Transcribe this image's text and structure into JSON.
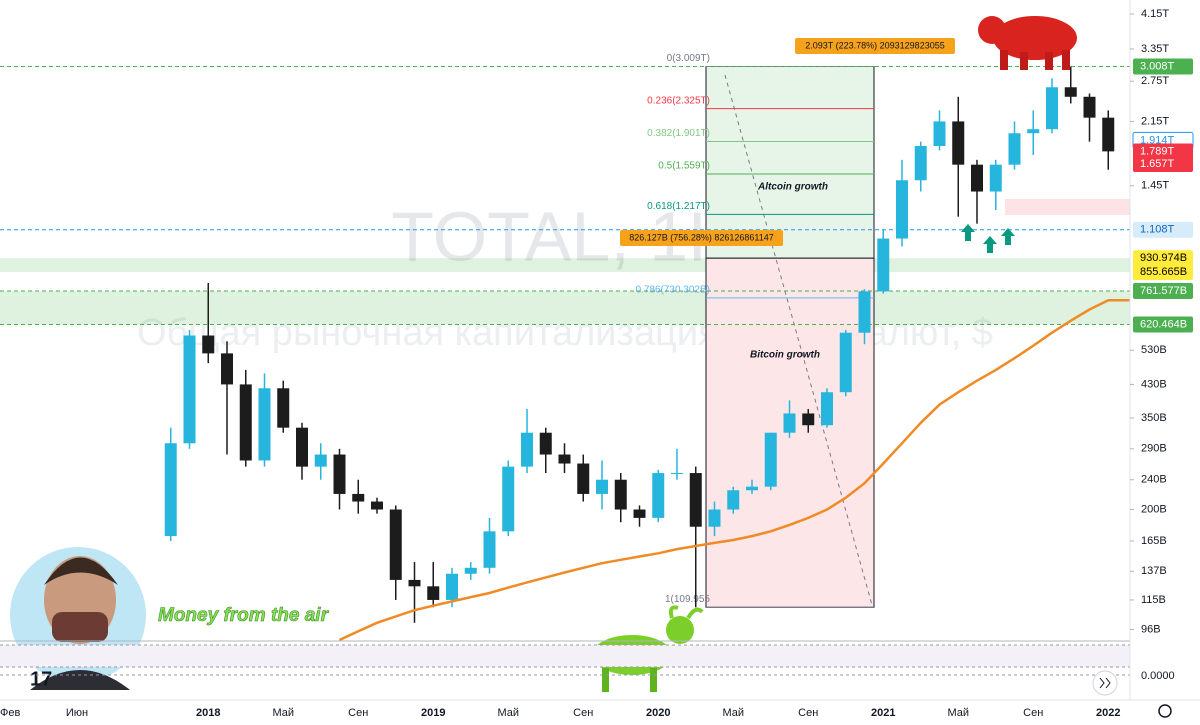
{
  "chart_data": {
    "type": "candlestick",
    "watermark_symbol": "TOTAL, 1Н",
    "watermark_title": "Общая рыночная капитализация криптовалют, $",
    "author": "Money from the air",
    "y_scale": "log",
    "ylim": [
      90,
      4520
    ],
    "yticks": [
      {
        "value": 4150,
        "label": "4.15T"
      },
      {
        "value": 3350,
        "label": "3.35T"
      },
      {
        "value": 2750,
        "label": "2.75T"
      },
      {
        "value": 2150,
        "label": "2.15T"
      },
      {
        "value": 1450,
        "label": "1.45T"
      },
      {
        "value": 530,
        "label": "530B"
      },
      {
        "value": 430,
        "label": "430B"
      },
      {
        "value": 350,
        "label": "350B"
      },
      {
        "value": 290,
        "label": "290B"
      },
      {
        "value": 240,
        "label": "240B"
      },
      {
        "value": 200,
        "label": "200B"
      },
      {
        "value": 165,
        "label": "165B"
      },
      {
        "value": 137,
        "label": "137B"
      },
      {
        "value": 115,
        "label": "115B"
      },
      {
        "value": 96,
        "label": "96B"
      }
    ],
    "x_labels": [
      "Фев",
      "Июн",
      "2018",
      "Май",
      "Сен",
      "2019",
      "Май",
      "Сен",
      "2020",
      "Май",
      "Сен",
      "2021",
      "Май",
      "Сен",
      "2022"
    ],
    "up_color": "#26b5dc",
    "down_color": "#1c1c1c",
    "open": [
      170,
      300,
      580,
      520,
      430,
      270,
      420,
      330,
      260,
      280,
      220,
      210,
      200,
      130,
      125,
      115,
      135,
      140,
      175,
      260,
      320,
      280,
      265,
      220,
      240,
      200,
      190,
      250,
      250,
      180,
      200,
      225,
      230,
      320,
      360,
      335,
      410,
      590,
      760,
      1050,
      1500,
      1850,
      2150,
      1650,
      1400,
      1650,
      2000,
      2050,
      2650,
      2500,
      2200
    ],
    "high": [
      330,
      600,
      800,
      560,
      470,
      460,
      440,
      340,
      300,
      290,
      240,
      215,
      205,
      145,
      145,
      140,
      145,
      190,
      270,
      370,
      330,
      300,
      280,
      270,
      250,
      205,
      255,
      290,
      260,
      210,
      230,
      240,
      320,
      390,
      370,
      420,
      600,
      770,
      1110,
      1700,
      1900,
      2300,
      2500,
      1700,
      1700,
      2150,
      2300,
      2800,
      3009,
      2550,
      2300
    ],
    "low": [
      165,
      290,
      490,
      280,
      260,
      260,
      320,
      240,
      240,
      200,
      195,
      195,
      115,
      100,
      110,
      110,
      130,
      135,
      170,
      250,
      250,
      250,
      210,
      200,
      185,
      180,
      185,
      240,
      110,
      170,
      195,
      220,
      225,
      310,
      320,
      330,
      400,
      550,
      750,
      1000,
      1400,
      1800,
      1200,
      1150,
      1250,
      1600,
      1750,
      2000,
      2400,
      1900,
      1600
    ],
    "close": [
      300,
      580,
      520,
      430,
      270,
      420,
      330,
      260,
      280,
      220,
      210,
      200,
      130,
      125,
      115,
      135,
      140,
      175,
      260,
      320,
      280,
      265,
      220,
      240,
      200,
      190,
      250,
      250,
      180,
      200,
      225,
      230,
      320,
      360,
      335,
      410,
      590,
      760,
      1050,
      1500,
      1850,
      2150,
      1650,
      1400,
      1650,
      2000,
      2050,
      2650,
      2500,
      2200,
      1790
    ],
    "ma": {
      "color": "#f08a24",
      "values": [
        null,
        null,
        null,
        null,
        null,
        null,
        null,
        null,
        null,
        90,
        95,
        100,
        104,
        108,
        111,
        114,
        117,
        120,
        124,
        128,
        132,
        136,
        140,
        144,
        147,
        150,
        153,
        157,
        160,
        163,
        166,
        170,
        175,
        182,
        190,
        200,
        215,
        235,
        265,
        300,
        340,
        380,
        410,
        440,
        470,
        505,
        545,
        590,
        635,
        680,
        720
      ]
    },
    "price_markers": [
      {
        "value": 3008,
        "label": "3.008T",
        "color": "#4caf50",
        "text_color": "#ffffff"
      },
      {
        "value": 1914,
        "label": "1.914T",
        "color": "#ffffff",
        "text_color": "#2196f3"
      },
      {
        "value": 1789,
        "label": "1.789T",
        "color": "#f23645",
        "text_color": "#ffffff"
      },
      {
        "value": 1657,
        "label": "1.657T",
        "color": "#f23645",
        "text_color": "#ffffff"
      },
      {
        "value": 1108,
        "label": "1.108T",
        "color": "#d6ecfb",
        "text_color": "#1565c0"
      },
      {
        "value": 930.974,
        "label": "930.974B",
        "color": "#ffeb3b",
        "text_color": "#000000"
      },
      {
        "value": 855.665,
        "label": "855.665B",
        "color": "#ffeb3b",
        "text_color": "#000000"
      },
      {
        "value": 761.577,
        "label": "761.577B",
        "color": "#4caf50",
        "text_color": "#ffffff"
      },
      {
        "value": 620.464,
        "label": "620.464B",
        "color": "#4caf50",
        "text_color": "#ffffff"
      }
    ],
    "fib_levels": [
      {
        "value": 3009,
        "label": "0(3.009T)",
        "color": "#787b86"
      },
      {
        "value": 2325,
        "label": "0.236(2.325T)",
        "color": "#f23645"
      },
      {
        "value": 1901,
        "label": "0.382(1.901T)",
        "color": "#81c784"
      },
      {
        "value": 1559,
        "label": "0.5(1.559T)",
        "color": "#4caf50"
      },
      {
        "value": 1217,
        "label": "0.618(1.217T)",
        "color": "#089981"
      },
      {
        "value": 730.302,
        "label": "0.786(730.302B)",
        "color": "#64b5f6"
      },
      {
        "value": 109.955,
        "label": "1(109.955",
        "color": "#787b86"
      }
    ],
    "box_labels": [
      "Altcoin growth",
      "Bitcoin growth"
    ],
    "measure_labels": [
      "2.093T (223.78%) 2093129823055",
      "826.127B (756.28%) 826126861147"
    ],
    "oscillator_label": "0.0000"
  }
}
